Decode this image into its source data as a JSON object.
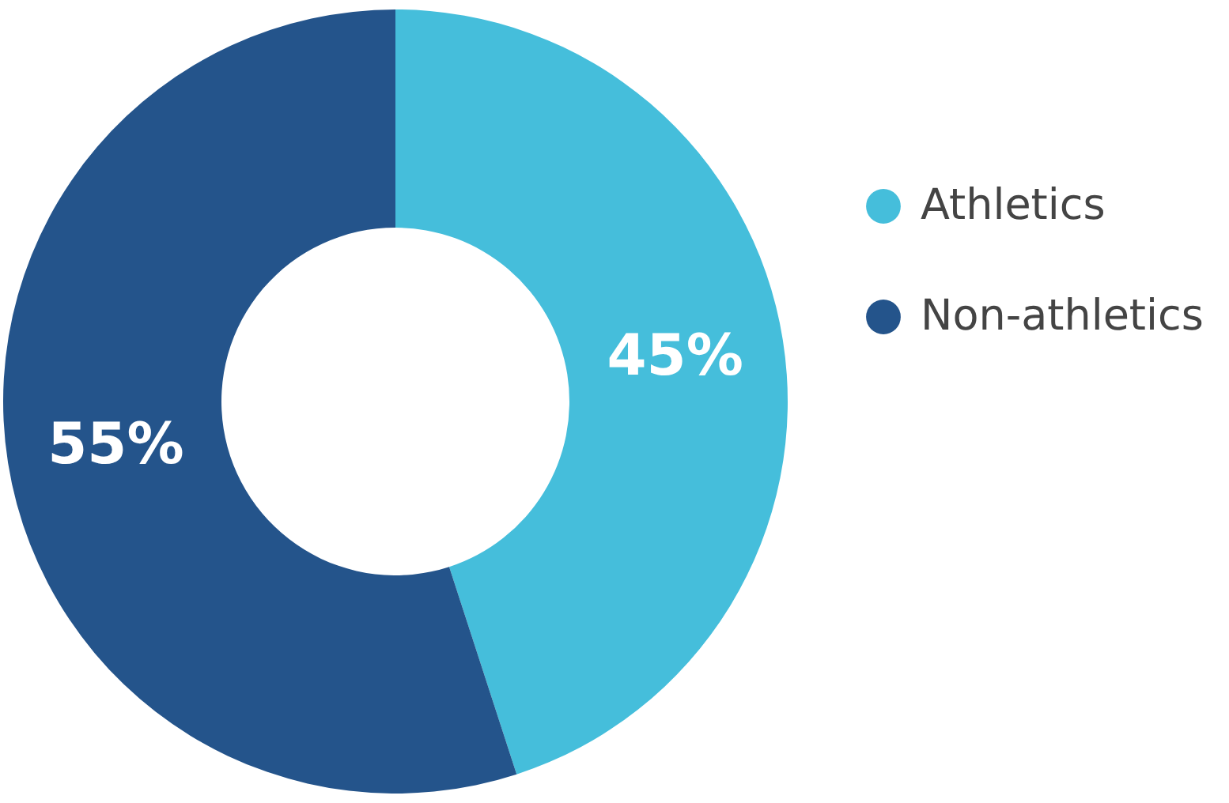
{
  "chart_data": {
    "type": "donut",
    "categories": [
      "Athletics",
      "Non-athletics"
    ],
    "values": [
      45,
      55
    ],
    "colors": [
      "#45bedb",
      "#24548b"
    ],
    "value_labels": [
      "45%",
      "55%"
    ],
    "legend": "right"
  }
}
